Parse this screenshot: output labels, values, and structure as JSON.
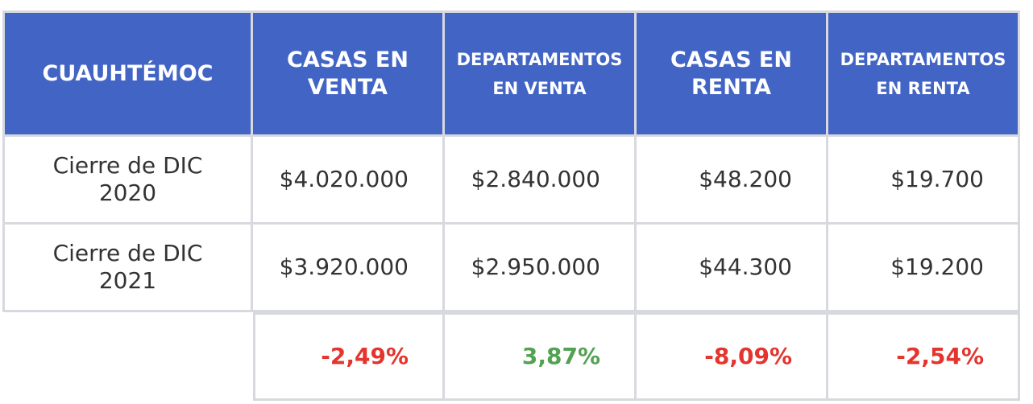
{
  "table": {
    "headers": [
      "CUAUHTÉMOC",
      "CASAS EN VENTA",
      "DEPARTAMENTOS EN VENTA",
      "CASAS EN RENTA",
      "DEPARTAMENTOS EN RENTA"
    ],
    "rows": [
      {
        "label_line1": "Cierre de DIC",
        "label_line2": "2020",
        "values": [
          "$4.020.000",
          "$2.840.000",
          "$48.200",
          "$19.700"
        ]
      },
      {
        "label_line1": "Cierre de DIC",
        "label_line2": "2021",
        "values": [
          "$3.920.000",
          "$2.950.000",
          "$44.300",
          "$19.200"
        ]
      }
    ],
    "changes": [
      "-2,49%",
      "3,87%",
      "-8,09%",
      "-2,54%"
    ]
  },
  "colors": {
    "header_background": "#4264c4",
    "negative": "#e5342e",
    "positive": "#53a153",
    "grid_lines": "#d7d9de"
  }
}
